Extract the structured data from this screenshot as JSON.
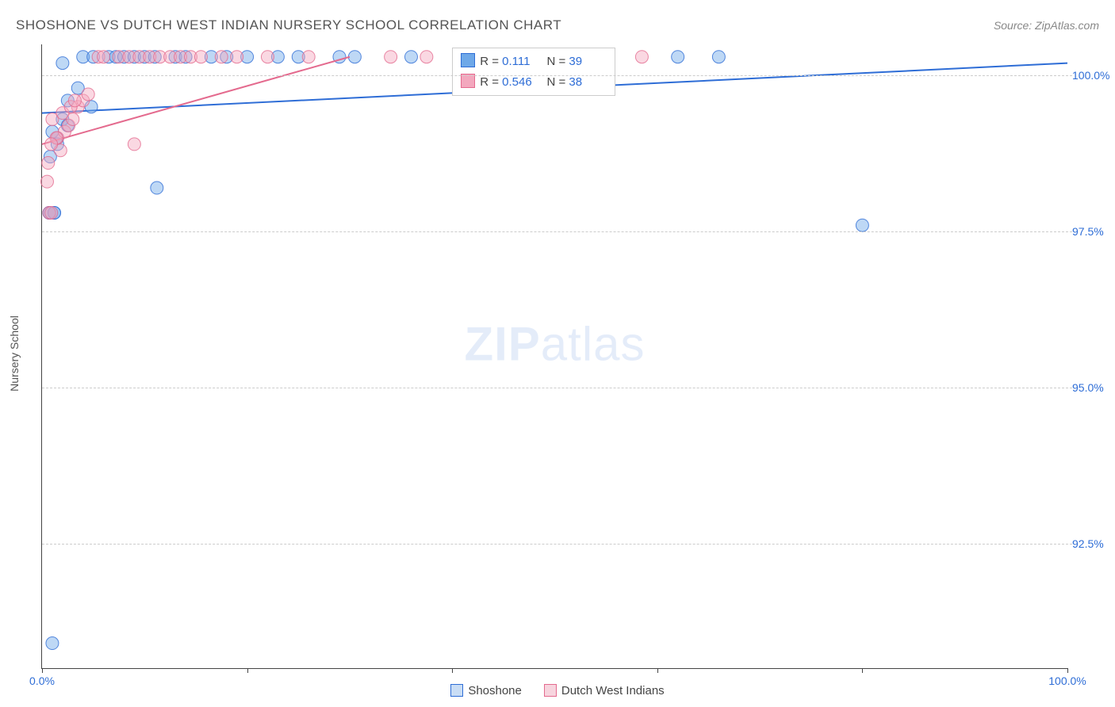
{
  "title": "SHOSHONE VS DUTCH WEST INDIAN NURSERY SCHOOL CORRELATION CHART",
  "source_prefix": "Source: ",
  "source_name": "ZipAtlas.com",
  "ylabel": "Nursery School",
  "watermark_a": "ZIP",
  "watermark_b": "atlas",
  "chart": {
    "type": "scatter",
    "xlim": [
      0,
      100
    ],
    "ylim": [
      90.5,
      100.5
    ],
    "x_ticks": [
      0,
      20,
      40,
      60,
      80,
      100
    ],
    "x_tick_labels_shown": {
      "0": "0.0%",
      "100": "100.0%"
    },
    "y_ticks": [
      92.5,
      95.0,
      97.5,
      100.0
    ],
    "y_tick_labels": [
      "92.5%",
      "95.0%",
      "97.5%",
      "100.0%"
    ],
    "background_color": "#ffffff",
    "grid_color": "#cccccc",
    "axis_color": "#444444",
    "label_color": "#2e6dd6",
    "marker_radius": 8,
    "marker_opacity": 0.45,
    "line_width": 2,
    "series": [
      {
        "name": "Shoshone",
        "fill": "#6ea8e8",
        "stroke": "#2e6dd6",
        "R": "0.111",
        "N": "39",
        "trend": {
          "x1": 0,
          "y1": 99.4,
          "x2": 100,
          "y2": 100.2
        },
        "points": [
          [
            0.7,
            97.8
          ],
          [
            0.7,
            97.8
          ],
          [
            1.2,
            97.8
          ],
          [
            1.2,
            97.8
          ],
          [
            1.0,
            90.9
          ],
          [
            4.8,
            99.5
          ],
          [
            2.0,
            100.2
          ],
          [
            11.2,
            98.2
          ],
          [
            4.0,
            100.3
          ],
          [
            5.0,
            100.3
          ],
          [
            6.5,
            100.3
          ],
          [
            7.2,
            100.3
          ],
          [
            8.0,
            100.3
          ],
          [
            9.0,
            100.3
          ],
          [
            10.0,
            100.3
          ],
          [
            11.0,
            100.3
          ],
          [
            13.0,
            100.3
          ],
          [
            14.0,
            100.3
          ],
          [
            16.5,
            100.3
          ],
          [
            18.0,
            100.3
          ],
          [
            20.0,
            100.3
          ],
          [
            23.0,
            100.3
          ],
          [
            25.0,
            100.3
          ],
          [
            29.0,
            100.3
          ],
          [
            30.5,
            100.3
          ],
          [
            36.0,
            100.3
          ],
          [
            42.0,
            100.3
          ],
          [
            48.0,
            100.3
          ],
          [
            62.0,
            100.3
          ],
          [
            66.0,
            100.3
          ],
          [
            1.5,
            99.0
          ],
          [
            2.0,
            99.3
          ],
          [
            2.5,
            99.6
          ],
          [
            3.5,
            99.8
          ],
          [
            1.0,
            99.1
          ],
          [
            0.8,
            98.7
          ],
          [
            1.5,
            98.9
          ],
          [
            2.5,
            99.2
          ],
          [
            80.0,
            97.6
          ]
        ]
      },
      {
        "name": "Dutch West Indians",
        "fill": "#f3a8be",
        "stroke": "#e46a8e",
        "R": "0.546",
        "N": "38",
        "trend": {
          "x1": 0,
          "y1": 98.9,
          "x2": 30,
          "y2": 100.3
        },
        "points": [
          [
            0.5,
            98.3
          ],
          [
            0.7,
            97.8
          ],
          [
            0.9,
            97.8
          ],
          [
            1.5,
            99.0
          ],
          [
            1.8,
            98.8
          ],
          [
            2.2,
            99.1
          ],
          [
            2.6,
            99.2
          ],
          [
            3.0,
            99.3
          ],
          [
            3.5,
            99.5
          ],
          [
            4.0,
            99.6
          ],
          [
            4.5,
            99.7
          ],
          [
            5.5,
            100.3
          ],
          [
            6.0,
            100.3
          ],
          [
            7.5,
            100.3
          ],
          [
            8.5,
            100.3
          ],
          [
            9.5,
            100.3
          ],
          [
            10.5,
            100.3
          ],
          [
            11.5,
            100.3
          ],
          [
            12.5,
            100.3
          ],
          [
            13.5,
            100.3
          ],
          [
            14.5,
            100.3
          ],
          [
            15.5,
            100.3
          ],
          [
            17.5,
            100.3
          ],
          [
            19.0,
            100.3
          ],
          [
            22.0,
            100.3
          ],
          [
            26.0,
            100.3
          ],
          [
            1.0,
            99.3
          ],
          [
            1.4,
            99.0
          ],
          [
            2.0,
            99.4
          ],
          [
            2.8,
            99.5
          ],
          [
            3.2,
            99.6
          ],
          [
            0.6,
            98.6
          ],
          [
            0.9,
            98.9
          ],
          [
            9.0,
            98.9
          ],
          [
            34.0,
            100.3
          ],
          [
            37.5,
            100.3
          ],
          [
            46.0,
            100.3
          ],
          [
            58.5,
            100.3
          ]
        ]
      }
    ],
    "stats_box_labels": {
      "R": "R =",
      "N": "N ="
    }
  },
  "bottom_legend": [
    {
      "label": "Shoshone",
      "fill": "#c9ddf5",
      "stroke": "#2e6dd6"
    },
    {
      "label": "Dutch West Indians",
      "fill": "#f7d4de",
      "stroke": "#e46a8e"
    }
  ]
}
